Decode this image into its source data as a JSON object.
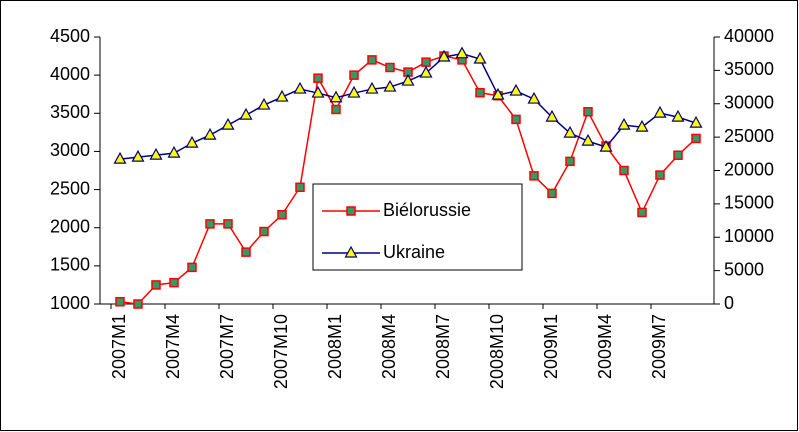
{
  "chart_data": {
    "type": "line",
    "categories": [
      "2007M1",
      null,
      null,
      "2007M4",
      null,
      null,
      "2007M7",
      null,
      null,
      "2007M10",
      null,
      null,
      "2008M1",
      null,
      null,
      "2008M4",
      null,
      null,
      "2008M7",
      null,
      null,
      "2008M10",
      null,
      null,
      "2009M1",
      null,
      null,
      "2009M4",
      null,
      null,
      "2009M7",
      null,
      null
    ],
    "series": [
      {
        "name": "Biélorussie",
        "color": "#ff0000",
        "marker_color": "#339966",
        "marker": "square",
        "values": [
          1030,
          1000,
          1250,
          1280,
          1480,
          2050,
          2050,
          1680,
          1950,
          2170,
          2530,
          3960,
          3550,
          4000,
          4200,
          4100,
          4040,
          4170,
          4250,
          4200,
          3770,
          3730,
          3420,
          2680,
          2450,
          2870,
          3520,
          3070,
          2750,
          2200,
          2690,
          2950,
          3170
        ]
      },
      {
        "name": "Ukraine",
        "color": "#000080",
        "marker_color": "#ffff00",
        "marker": "triangle",
        "axis": "y2",
        "values": [
          21700,
          22000,
          22300,
          22600,
          24100,
          25300,
          26800,
          28300,
          29800,
          31000,
          32200,
          31600,
          30900,
          31600,
          32200,
          32500,
          33400,
          34600,
          37000,
          37500,
          36700,
          31300,
          31900,
          30700,
          28000,
          25600,
          24400,
          23500,
          26800,
          26500,
          28600,
          28000,
          27100
        ]
      }
    ],
    "ylim": [
      1000,
      4500
    ],
    "yticks": [
      1000,
      1500,
      2000,
      2500,
      3000,
      3500,
      4000,
      4500
    ],
    "y2lim": [
      0,
      40000
    ],
    "y2ticks": [
      0,
      5000,
      10000,
      15000,
      20000,
      25000,
      30000,
      35000,
      40000
    ],
    "grid": false
  }
}
